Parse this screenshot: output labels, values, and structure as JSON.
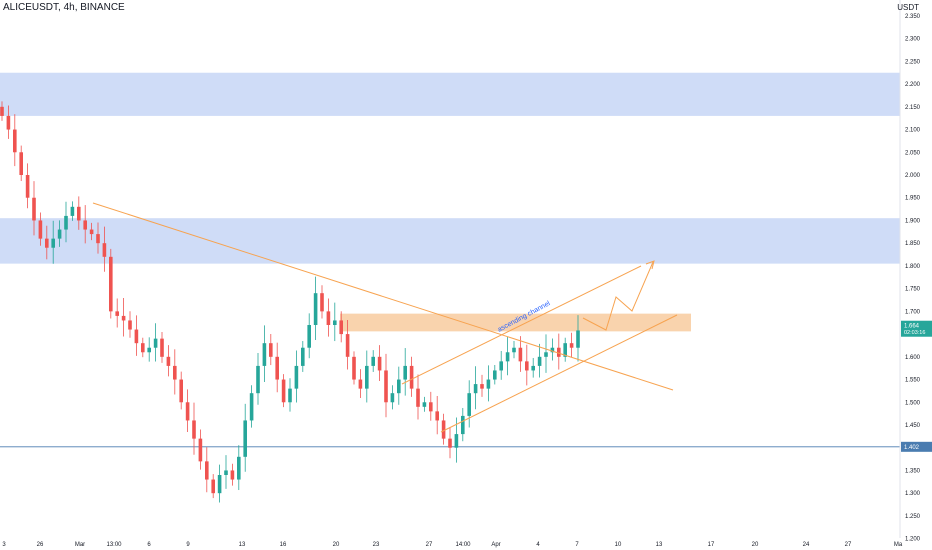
{
  "header": {
    "symbol": "ALICEUSDT",
    "interval": "4h",
    "exchange": "BINANCE",
    "currency": "USDT"
  },
  "colors": {
    "up": "#26a69a",
    "down": "#ef5350",
    "resistance_zone": "#cfdcf7",
    "target_zone": "#f9d3ad",
    "trendline": "#f7a350",
    "price_line": "#4a7cb0",
    "current_price_bg": "#26a69a",
    "support_price_bg": "#4a7cb0",
    "channel_label": "#2962ff"
  },
  "chart_data": {
    "type": "candlestick",
    "y_axis": {
      "ticks": [
        "2.350",
        "2.300",
        "2.250",
        "2.200",
        "2.150",
        "2.100",
        "2.050",
        "2.000",
        "1.950",
        "1.900",
        "1.850",
        "1.800",
        "1.750",
        "1.700",
        "1.650",
        "1.600",
        "1.550",
        "1.500",
        "1.450",
        "1.400",
        "1.350",
        "1.300",
        "1.250",
        "1.200"
      ],
      "range": [
        1.175,
        2.385
      ]
    },
    "x_axis": {
      "ticks": [
        "3",
        "26",
        "Mar",
        "13:00",
        "6",
        "9",
        "13",
        "16",
        "20",
        "23",
        "27",
        "14:00",
        "Apr",
        "4",
        "7",
        "10",
        "13",
        "17",
        "20",
        "24",
        "27",
        "Ma"
      ]
    },
    "ohlc_close_path": [
      2.13,
      2.1,
      2.05,
      2.0,
      1.95,
      1.9,
      1.86,
      1.84,
      1.86,
      1.88,
      1.91,
      1.93,
      1.9,
      1.88,
      1.87,
      1.85,
      1.82,
      1.7,
      1.69,
      1.68,
      1.66,
      1.63,
      1.61,
      1.62,
      1.64,
      1.6,
      1.58,
      1.55,
      1.5,
      1.46,
      1.42,
      1.37,
      1.33,
      1.3,
      1.34,
      1.35,
      1.33,
      1.38,
      1.46,
      1.52,
      1.58,
      1.63,
      1.6,
      1.55,
      1.5,
      1.53,
      1.58,
      1.62,
      1.67,
      1.74,
      1.7,
      1.67,
      1.68,
      1.65,
      1.6,
      1.55,
      1.53,
      1.58,
      1.6,
      1.57,
      1.5,
      1.52,
      1.55,
      1.58,
      1.53,
      1.49,
      1.5,
      1.48,
      1.46,
      1.42,
      1.4,
      1.43,
      1.47,
      1.52,
      1.54,
      1.53,
      1.55,
      1.57,
      1.59,
      1.61,
      1.62,
      1.59,
      1.57,
      1.58,
      1.6,
      1.61,
      1.62,
      1.6,
      1.63,
      1.62,
      1.658
    ],
    "zones": [
      {
        "name": "upper-resistance",
        "from": 2.13,
        "to": 2.225
      },
      {
        "name": "mid-resistance",
        "from": 1.805,
        "to": 1.905
      },
      {
        "name": "target",
        "from": 1.656,
        "to": 1.695
      }
    ],
    "support_level": 1.402,
    "current_price": 1.664,
    "annotations": [
      {
        "text": "ascending channel"
      }
    ],
    "labels": {
      "current_price": "1.664",
      "countdown": "02:03:16",
      "support_price": "1.402"
    }
  }
}
